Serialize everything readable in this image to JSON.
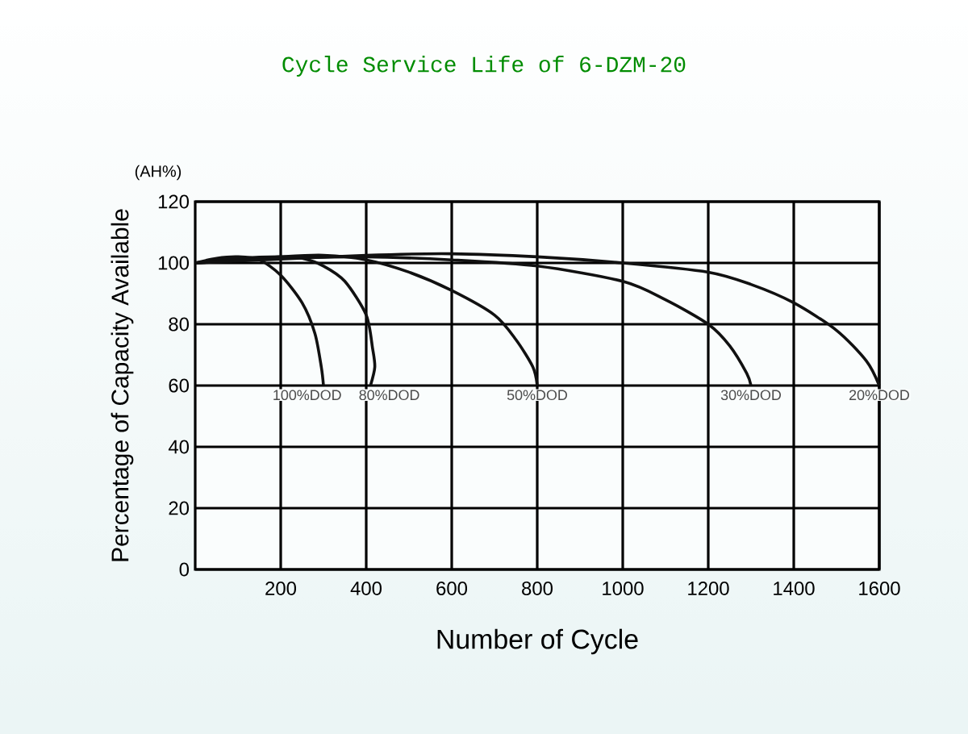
{
  "chart_data": {
    "type": "line",
    "title": "Cycle Service Life of 6-DZM-20",
    "xlabel": "Number of Cycle",
    "ylabel": "Percentage of Capacity Available",
    "annotations": [
      "(AH%)"
    ],
    "xlim": [
      0,
      1600
    ],
    "ylim": [
      0,
      120
    ],
    "xticks": [
      200,
      400,
      600,
      800,
      1000,
      1200,
      1400,
      1600
    ],
    "yticks": [
      0,
      20,
      40,
      60,
      80,
      100,
      120
    ],
    "grid": true,
    "marker": "none",
    "line_style": "solid",
    "series": [
      {
        "name": "100%DOD",
        "color": "#111111",
        "x": [
          0,
          50,
          100,
          150,
          200,
          250,
          280,
          295,
          300
        ],
        "values": [
          100,
          101.5,
          102,
          101,
          96,
          87,
          77,
          66,
          60
        ]
      },
      {
        "name": "80%DOD",
        "color": "#111111",
        "x": [
          0,
          100,
          200,
          250,
          300,
          350,
          400,
          415,
          420,
          410
        ],
        "values": [
          100,
          101.5,
          102,
          101.5,
          99,
          94,
          83,
          72,
          66,
          60
        ]
      },
      {
        "name": "50%DOD",
        "color": "#111111",
        "x": [
          0,
          200,
          300,
          400,
          500,
          600,
          700,
          750,
          790,
          800
        ],
        "values": [
          100,
          102,
          102.5,
          101,
          97,
          91,
          83,
          75,
          66,
          60
        ]
      },
      {
        "name": "30%DOD",
        "color": "#111111",
        "x": [
          0,
          200,
          400,
          600,
          800,
          1000,
          1100,
          1200,
          1250,
          1290,
          1300
        ],
        "values": [
          100,
          101.5,
          102,
          101,
          99,
          94,
          88,
          80,
          73,
          64,
          60
        ]
      },
      {
        "name": "20%DOD",
        "color": "#111111",
        "x": [
          0,
          400,
          600,
          800,
          1000,
          1200,
          1300,
          1400,
          1500,
          1570,
          1600
        ],
        "values": [
          100,
          102.5,
          103,
          102,
          100,
          97,
          93,
          87,
          78,
          68,
          60
        ]
      }
    ]
  }
}
